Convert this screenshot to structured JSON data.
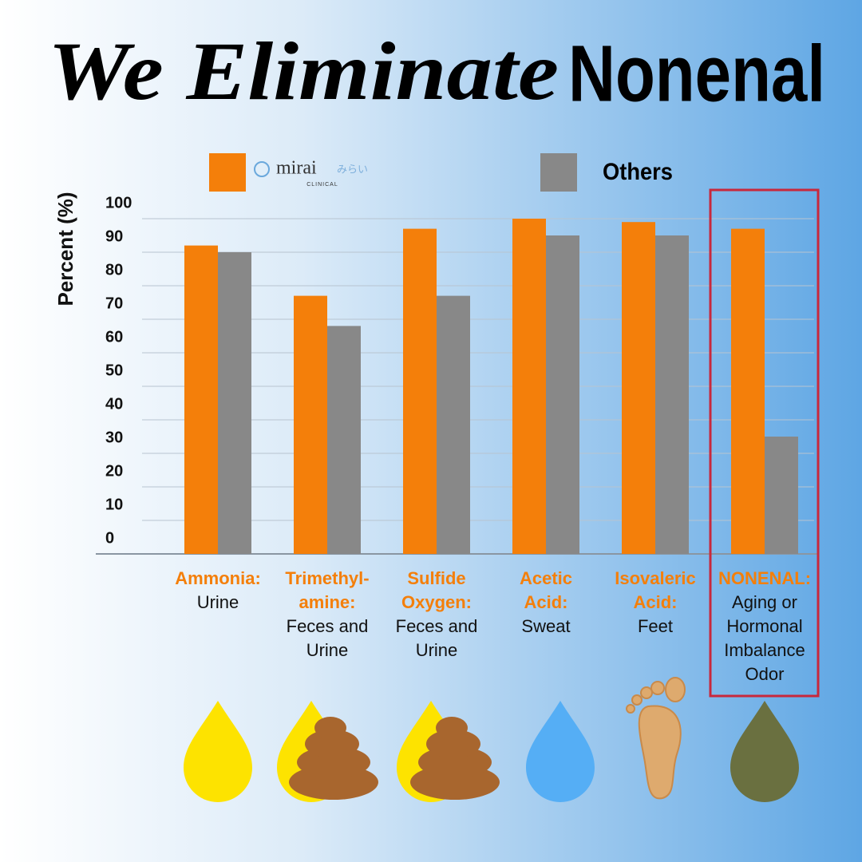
{
  "chart_data": {
    "type": "bar",
    "title_italic": "We Eliminate",
    "title_bold": "Nonenal",
    "ylabel": "Percent (%)",
    "categories": [
      [
        "Ammonia:"
      ],
      [
        "Trimethyl-",
        "amine:"
      ],
      [
        "Sulfide",
        "Oxygen:"
      ],
      [
        "Acetic",
        "Acid:"
      ],
      [
        "Isovaleric",
        "Acid:"
      ],
      [
        "NONENAL:"
      ]
    ],
    "sources": [
      [
        "Urine"
      ],
      [
        "Feces and",
        "Urine"
      ],
      [
        "Feces and",
        "Urine"
      ],
      [
        "Sweat"
      ],
      [
        "Feet"
      ],
      [
        "Aging or",
        "Hormonal",
        "Imbalance",
        "Odor"
      ]
    ],
    "series": [
      {
        "name": "mirai",
        "color": "#f47f0a",
        "values": [
          92,
          77,
          97,
          100,
          99,
          97
        ]
      },
      {
        "name": "Others",
        "color": "#888888",
        "values": [
          90,
          68,
          77,
          95,
          95,
          35
        ]
      }
    ],
    "logo": {
      "kana": "みらい",
      "sub": "CLINICAL"
    },
    "ylim": [
      0,
      100
    ],
    "yticks": [
      0,
      10,
      20,
      30,
      40,
      50,
      60,
      70,
      80,
      90,
      100
    ],
    "grid": true,
    "highlight_category": 5
  }
}
